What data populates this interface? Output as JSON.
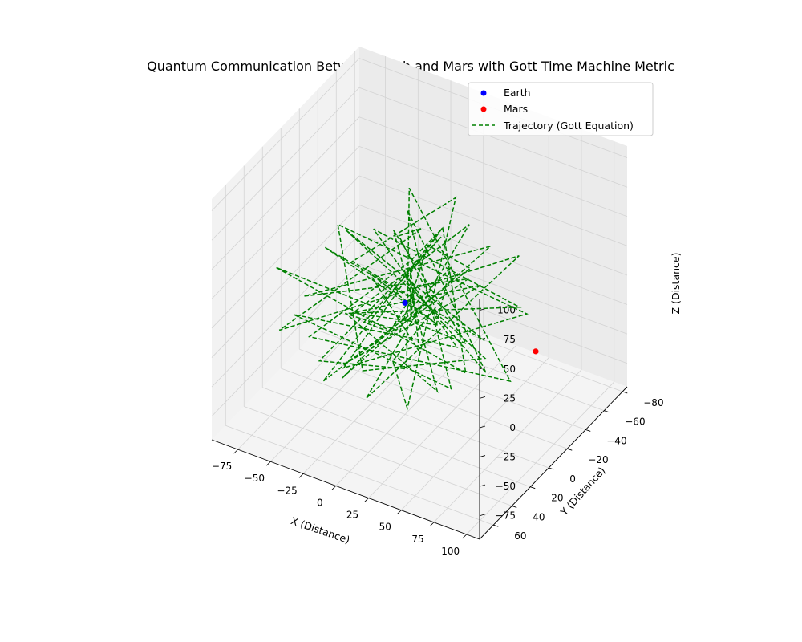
{
  "chart_data": {
    "type": "scatter",
    "projection": "3d",
    "title": "Quantum Communication Between Earth and Mars with Gott Time Machine Metric",
    "xlabel": "X (Distance)",
    "ylabel": "Y (Distance)",
    "zlabel": "Z (Distance)",
    "xlim": [
      -95,
      110
    ],
    "ylim": [
      -85,
      75
    ],
    "zlim": [
      -95,
      110
    ],
    "xticks": [
      -75,
      -50,
      -25,
      0,
      25,
      50,
      75,
      100
    ],
    "yticks": [
      -80,
      -60,
      -40,
      -20,
      0,
      20,
      40,
      60
    ],
    "zticks": [
      -75,
      -50,
      -25,
      0,
      25,
      50,
      75,
      100
    ],
    "xtick_labels": [
      "−75",
      "−50",
      "−25",
      "0",
      "25",
      "50",
      "75",
      "100"
    ],
    "ytick_labels": [
      "−80",
      "−60",
      "−40",
      "−20",
      "0",
      "20",
      "40",
      "60"
    ],
    "ztick_labels": [
      "−75",
      "−50",
      "−25",
      "0",
      "25",
      "50",
      "75",
      "100"
    ],
    "grid": true,
    "legend_position": "top-right",
    "series": [
      {
        "name": "Earth",
        "kind": "scatter",
        "color": "#0000ff",
        "points": [
          [
            0,
            0,
            0
          ]
        ]
      },
      {
        "name": "Mars",
        "kind": "scatter",
        "color": "#ff0000",
        "points": [
          [
            100,
            0,
            0
          ]
        ]
      },
      {
        "name": "Trajectory (Gott Equation)",
        "kind": "line",
        "style": "dashed",
        "color": "#008000",
        "points": [
          [
            5,
            -3,
            2
          ],
          [
            -40,
            30,
            55
          ],
          [
            10,
            -20,
            -30
          ],
          [
            45,
            15,
            60
          ],
          [
            -20,
            40,
            -40
          ],
          [
            30,
            -50,
            20
          ],
          [
            -70,
            10,
            -15
          ],
          [
            20,
            25,
            45
          ],
          [
            55,
            -10,
            -45
          ],
          [
            -30,
            -45,
            30
          ],
          [
            60,
            35,
            -20
          ],
          [
            -50,
            50,
            10
          ],
          [
            15,
            -35,
            -60
          ],
          [
            -10,
            20,
            75
          ],
          [
            70,
            -25,
            5
          ],
          [
            -60,
            -20,
            -50
          ],
          [
            35,
            55,
            35
          ],
          [
            -25,
            -60,
            -10
          ],
          [
            50,
            0,
            50
          ],
          [
            -45,
            25,
            -65
          ],
          [
            25,
            -5,
            70
          ],
          [
            -15,
            45,
            -25
          ],
          [
            65,
            -40,
            -15
          ],
          [
            -55,
            -5,
            40
          ],
          [
            10,
            60,
            -5
          ],
          [
            40,
            -30,
            -55
          ],
          [
            -35,
            15,
            60
          ],
          [
            75,
            20,
            15
          ],
          [
            -65,
            -35,
            -20
          ],
          [
            0,
            -55,
            45
          ],
          [
            30,
            40,
            -45
          ],
          [
            -20,
            -15,
            -70
          ],
          [
            55,
            45,
            55
          ],
          [
            -40,
            -50,
            0
          ],
          [
            20,
            10,
            80
          ],
          [
            -75,
            30,
            -30
          ],
          [
            45,
            -60,
            10
          ],
          [
            -5,
            35,
            -55
          ],
          [
            35,
            -20,
            65
          ],
          [
            -50,
            -10,
            -40
          ],
          [
            60,
            50,
            -10
          ],
          [
            -30,
            -30,
            25
          ],
          [
            15,
            -45,
            -65
          ],
          [
            -60,
            55,
            50
          ],
          [
            50,
            5,
            -35
          ],
          [
            -10,
            -55,
            15
          ],
          [
            25,
            30,
            70
          ],
          [
            -45,
            40,
            -15
          ],
          [
            70,
            -15,
            -50
          ],
          [
            -25,
            -40,
            55
          ],
          [
            40,
            55,
            5
          ],
          [
            -55,
            15,
            -60
          ],
          [
            10,
            -25,
            40
          ],
          [
            -35,
            -5,
            -35
          ],
          [
            20,
            45,
            20
          ],
          [
            -15,
            -35,
            -20
          ],
          [
            45,
            -5,
            35
          ],
          [
            -30,
            25,
            -45
          ],
          [
            30,
            -40,
            -5
          ],
          [
            -5,
            50,
            30
          ],
          [
            15,
            -15,
            -25
          ],
          [
            -20,
            10,
            25
          ],
          [
            25,
            20,
            -15
          ],
          [
            -10,
            -20,
            10
          ],
          [
            8,
            5,
            -8
          ],
          [
            2,
            -6,
            4
          ]
        ]
      }
    ]
  }
}
